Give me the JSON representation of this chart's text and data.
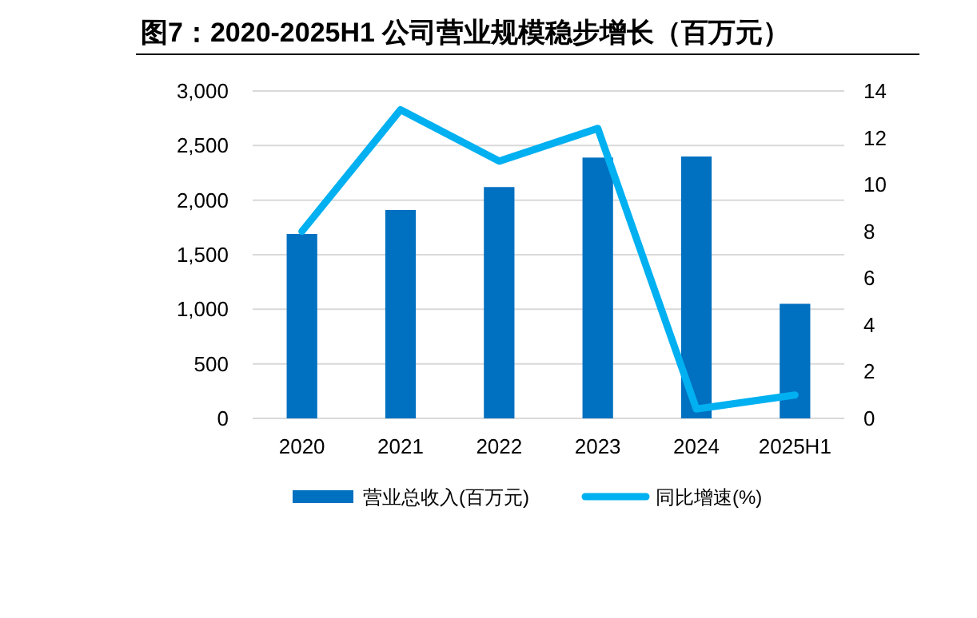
{
  "chart_data": {
    "type": "bar",
    "title": "图7：2020-2025H1 公司营业规模稳步增长（百万元）",
    "categories": [
      "2020",
      "2021",
      "2022",
      "2023",
      "2024",
      "2025H1"
    ],
    "series": [
      {
        "name": "营业总收入(百万元)",
        "color": "#0070c0",
        "values": [
          1690,
          1910,
          2120,
          2390,
          2400,
          1050
        ]
      },
      {
        "name": "同比增速(%)",
        "type": "line",
        "axis": "y2",
        "color": "#00b0f0",
        "values": [
          8.0,
          13.2,
          11.0,
          12.4,
          0.4,
          1.0
        ]
      }
    ],
    "ylim": [
      0,
      3000
    ],
    "yticks": [
      0,
      {
        "value": 500,
        "label": "500"
      },
      {
        "value": 1000,
        "label": "1,000"
      },
      {
        "value": 1500,
        "label": "1,500"
      },
      {
        "value": 2000,
        "label": "2,000"
      },
      {
        "value": 2500,
        "label": "2,500"
      },
      {
        "value": 3000,
        "label": "3,000"
      }
    ],
    "y2lim": [
      0,
      14
    ],
    "y2ticks": [
      0,
      2,
      4,
      6,
      8,
      10,
      12,
      14
    ],
    "grid": "y",
    "legend": "bottom",
    "marker": "none"
  }
}
